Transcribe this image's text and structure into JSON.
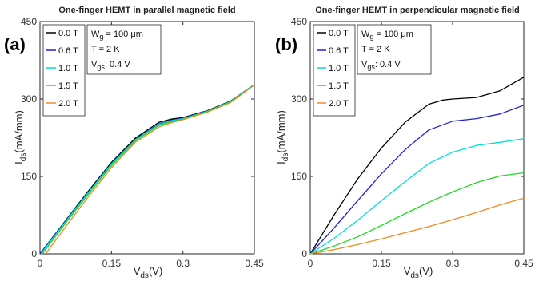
{
  "chart_data": [
    {
      "type": "line",
      "panel_label": "(a)",
      "title": "One-finger HEMT in parallel magnetic field",
      "xlabel": "V",
      "xlabel_sub": "ds",
      "xlabel_unit": "(V)",
      "ylabel": "I",
      "ylabel_sub": "ds",
      "ylabel_unit": "(mA/mm)",
      "xlim": [
        0,
        0.45
      ],
      "ylim": [
        0,
        450
      ],
      "xticks": [
        "0",
        "0.15",
        "0.3",
        "0.45"
      ],
      "yticks": [
        "0",
        "150",
        "300",
        "450"
      ],
      "xtick_values": [
        0,
        0.15,
        0.3,
        0.45
      ],
      "ytick_values": [
        0,
        150,
        300,
        450
      ],
      "grid": false,
      "legend_position": "top-left",
      "annotation": {
        "line1_main": "W",
        "line1_sub": "g",
        "line1_rest": " = 100 μm",
        "line2": "T = 2 K",
        "line3_main": "V",
        "line3_sub": "gs",
        "line3_rest": ": 0.4 V"
      },
      "series": [
        {
          "name": "0.0 T",
          "color": "#000000",
          "x": [
            0,
            0.05,
            0.1,
            0.15,
            0.2,
            0.25,
            0.275,
            0.3,
            0.35,
            0.4,
            0.45
          ],
          "y": [
            0,
            60,
            120,
            177,
            224,
            255,
            261,
            264,
            277,
            296,
            328
          ]
        },
        {
          "name": "0.6 T",
          "color": "#1f1fdc",
          "x": [
            0,
            0.05,
            0.1,
            0.15,
            0.2,
            0.25,
            0.275,
            0.3,
            0.35,
            0.4,
            0.45
          ],
          "y": [
            0,
            59,
            118,
            175,
            222,
            252,
            259,
            263,
            276,
            295,
            328
          ]
        },
        {
          "name": "1.0 T",
          "color": "#00dede",
          "x": [
            0.002,
            0.05,
            0.1,
            0.15,
            0.2,
            0.25,
            0.275,
            0.3,
            0.35,
            0.4,
            0.45
          ],
          "y": [
            0,
            58,
            117,
            174,
            221,
            251,
            258,
            262,
            276,
            295,
            328
          ]
        },
        {
          "name": "1.5 T",
          "color": "#22d822",
          "x": [
            0.005,
            0.05,
            0.1,
            0.15,
            0.2,
            0.25,
            0.275,
            0.3,
            0.35,
            0.4,
            0.45
          ],
          "y": [
            0,
            55,
            114,
            171,
            219,
            249,
            256,
            261,
            275,
            294,
            327
          ]
        },
        {
          "name": "2.0 T",
          "color": "#f28a1e",
          "x": [
            0.012,
            0.05,
            0.1,
            0.15,
            0.2,
            0.25,
            0.275,
            0.3,
            0.35,
            0.4,
            0.45
          ],
          "y": [
            0,
            48,
            109,
            167,
            216,
            246,
            254,
            260,
            274,
            293,
            327
          ]
        }
      ]
    },
    {
      "type": "line",
      "panel_label": "(b)",
      "title": "One-finger HEMT in perpendicular magnetic field",
      "xlabel": "V",
      "xlabel_sub": "ds",
      "xlabel_unit": "(V)",
      "ylabel": "I",
      "ylabel_sub": "ds",
      "ylabel_unit": "(mA/mm)",
      "xlim": [
        0,
        0.45
      ],
      "ylim": [
        0,
        450
      ],
      "xticks": [
        "0",
        "0.15",
        "0.3",
        "0.45"
      ],
      "yticks": [
        "0",
        "150",
        "300",
        "450"
      ],
      "xtick_values": [
        0,
        0.15,
        0.3,
        0.45
      ],
      "ytick_values": [
        0,
        150,
        300,
        450
      ],
      "grid": false,
      "legend_position": "top-left",
      "annotation": {
        "line1_main": "W",
        "line1_sub": "g",
        "line1_rest": " = 100 μm",
        "line2": "T = 2 K",
        "line3_main": "V",
        "line3_sub": "gs",
        "line3_rest": ": 0.4 V"
      },
      "series": [
        {
          "name": "0.0 T",
          "color": "#000000",
          "x": [
            0,
            0.05,
            0.1,
            0.15,
            0.2,
            0.25,
            0.28,
            0.3,
            0.35,
            0.4,
            0.45
          ],
          "y": [
            0,
            75,
            145,
            205,
            255,
            290,
            298,
            300,
            303,
            316,
            342
          ]
        },
        {
          "name": "0.6 T",
          "color": "#1f1fdc",
          "x": [
            0,
            0.05,
            0.1,
            0.15,
            0.2,
            0.25,
            0.3,
            0.35,
            0.4,
            0.45
          ],
          "y": [
            0,
            50,
            103,
            155,
            202,
            240,
            257,
            262,
            271,
            288
          ]
        },
        {
          "name": "1.0 T",
          "color": "#00dede",
          "x": [
            0,
            0.05,
            0.1,
            0.15,
            0.2,
            0.25,
            0.3,
            0.35,
            0.4,
            0.45
          ],
          "y": [
            0,
            30,
            65,
            103,
            140,
            175,
            197,
            210,
            216,
            223
          ]
        },
        {
          "name": "1.5 T",
          "color": "#22d822",
          "x": [
            0,
            0.05,
            0.1,
            0.15,
            0.2,
            0.25,
            0.3,
            0.35,
            0.4,
            0.45
          ],
          "y": [
            0,
            15,
            33,
            55,
            78,
            100,
            120,
            138,
            151,
            157
          ]
        },
        {
          "name": "2.0 T",
          "color": "#f28a1e",
          "x": [
            0,
            0.05,
            0.1,
            0.15,
            0.2,
            0.25,
            0.3,
            0.35,
            0.4,
            0.45
          ],
          "y": [
            0,
            8,
            18,
            29,
            41,
            53,
            66,
            80,
            95,
            108
          ]
        }
      ]
    }
  ]
}
